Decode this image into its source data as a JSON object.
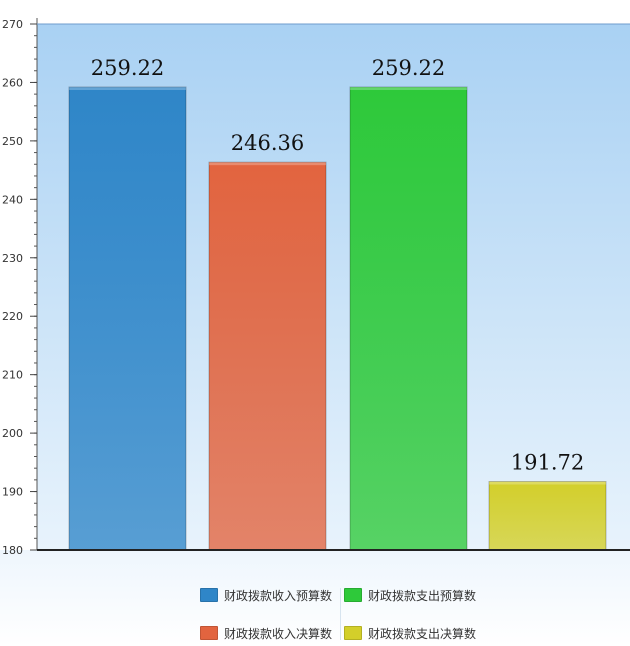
{
  "chart_data": {
    "type": "bar",
    "categories": [
      "财政拨款收入预算数",
      "财政拨款收入决算数",
      "财政拨款支出预算数",
      "财政拨款支出决算数"
    ],
    "values": [
      259.22,
      246.36,
      259.22,
      191.72
    ],
    "value_labels": [
      "259.22",
      "246.36",
      "259.22",
      "191.72"
    ],
    "colors": [
      "#2f86c8",
      "#e2643f",
      "#2ec93a",
      "#d3cf2a"
    ],
    "ylim": [
      180,
      270
    ],
    "yticks": [
      180,
      190,
      200,
      210,
      220,
      230,
      240,
      250,
      260,
      270
    ],
    "ytick_labels": [
      "180",
      "190",
      "200",
      "210",
      "220",
      "230",
      "240",
      "250",
      "260",
      "270"
    ],
    "grid": false,
    "legend_position": "bottom",
    "title": "",
    "xlabel": "",
    "ylabel": ""
  },
  "legend": [
    {
      "label": "财政拨款收入预算数",
      "color": "#2f86c8"
    },
    {
      "label": "财政拨款支出预算数",
      "color": "#2ec93a"
    },
    {
      "label": "财政拨款收入决算数",
      "color": "#e2643f"
    },
    {
      "label": "财政拨款支出决算数",
      "color": "#d3cf2a"
    }
  ]
}
